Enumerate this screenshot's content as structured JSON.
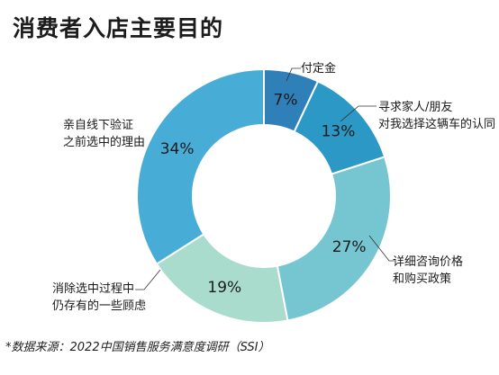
{
  "chart_data": {
    "type": "pie",
    "title": "消费者入店主要目的",
    "donut": true,
    "categories": [
      "付定金",
      "寻求家人/朋友对我选择这辆车的认同",
      "详细咨询价格和购买政策",
      "消除选中过程中仍存有的一些顾虑",
      "亲自线下验证之前选中的理由"
    ],
    "values": [
      7,
      13,
      27,
      19,
      34
    ],
    "value_labels": [
      "7%",
      "13%",
      "27%",
      "19%",
      "34%"
    ],
    "label_lines": [
      [
        "付定金"
      ],
      [
        "寻求家人/朋友",
        "对我选择这辆车的认同"
      ],
      [
        "详细咨询价格",
        "和购买政策"
      ],
      [
        "消除选中过程中",
        "仍存有的一些顾虑"
      ],
      [
        "亲自线下验证",
        "之前选中的理由"
      ]
    ],
    "colors": [
      "#2f7fb8",
      "#2b98c5",
      "#76c6d2",
      "#a9dccd",
      "#48add6"
    ],
    "legend": "none"
  },
  "source": "*数据来源：2022中国销售服务满意度调研（SSI）"
}
